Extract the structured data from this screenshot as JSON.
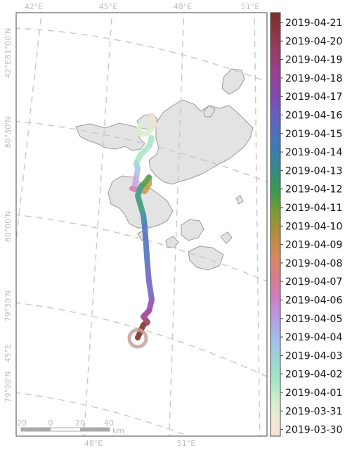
{
  "map": {
    "graticule": {
      "top_lon_labels": [
        "42°E",
        "45°E",
        "48°E",
        "51°E"
      ],
      "bottom_lon_labels": [
        "48°E",
        "51°E"
      ],
      "lat_labels": [
        "81°00'N",
        "80°30'N",
        "80°00'N",
        "79°30'N",
        "79°00'N"
      ],
      "side_lon_labels": [
        "42°E",
        "45°E"
      ]
    },
    "scale_bar": {
      "ticks": [
        "20",
        "0",
        "20",
        "40"
      ],
      "unit": "km"
    },
    "track": {
      "start_date": "2019-03-30",
      "end_date": "2019-04-21"
    }
  },
  "colorbar": {
    "labels": [
      "2019-04-21",
      "2019-04-20",
      "2019-04-19",
      "2019-04-18",
      "2019-04-17",
      "2019-04-16",
      "2019-04-15",
      "2019-04-14",
      "2019-04-13",
      "2019-04-12",
      "2019-04-11",
      "2019-04-10",
      "2019-04-09",
      "2019-04-08",
      "2019-04-07",
      "2019-04-06",
      "2019-04-05",
      "2019-04-04",
      "2019-04-03",
      "2019-04-02",
      "2019-04-01",
      "2019-03-31",
      "2019-03-30"
    ],
    "colors": [
      "#8b3a2a",
      "#953b5e",
      "#9a3f8f",
      "#7e4ab2",
      "#6a62c3",
      "#4e72bd",
      "#3a8390",
      "#3a9a55",
      "#6b9a35",
      "#a1903a",
      "#c9924a",
      "#d9806a",
      "#d778a0",
      "#c98fd8",
      "#aaaee6",
      "#9fc6e6",
      "#9adac8",
      "#a6e6c4",
      "#c2edc4",
      "#e2efd0",
      "#f1ead2",
      "#f4ddd0"
    ]
  },
  "colors": {
    "land": "#e3e3e3",
    "land_stroke": "#888888",
    "graticule": "#c8c8c8",
    "frame": "#444444"
  }
}
